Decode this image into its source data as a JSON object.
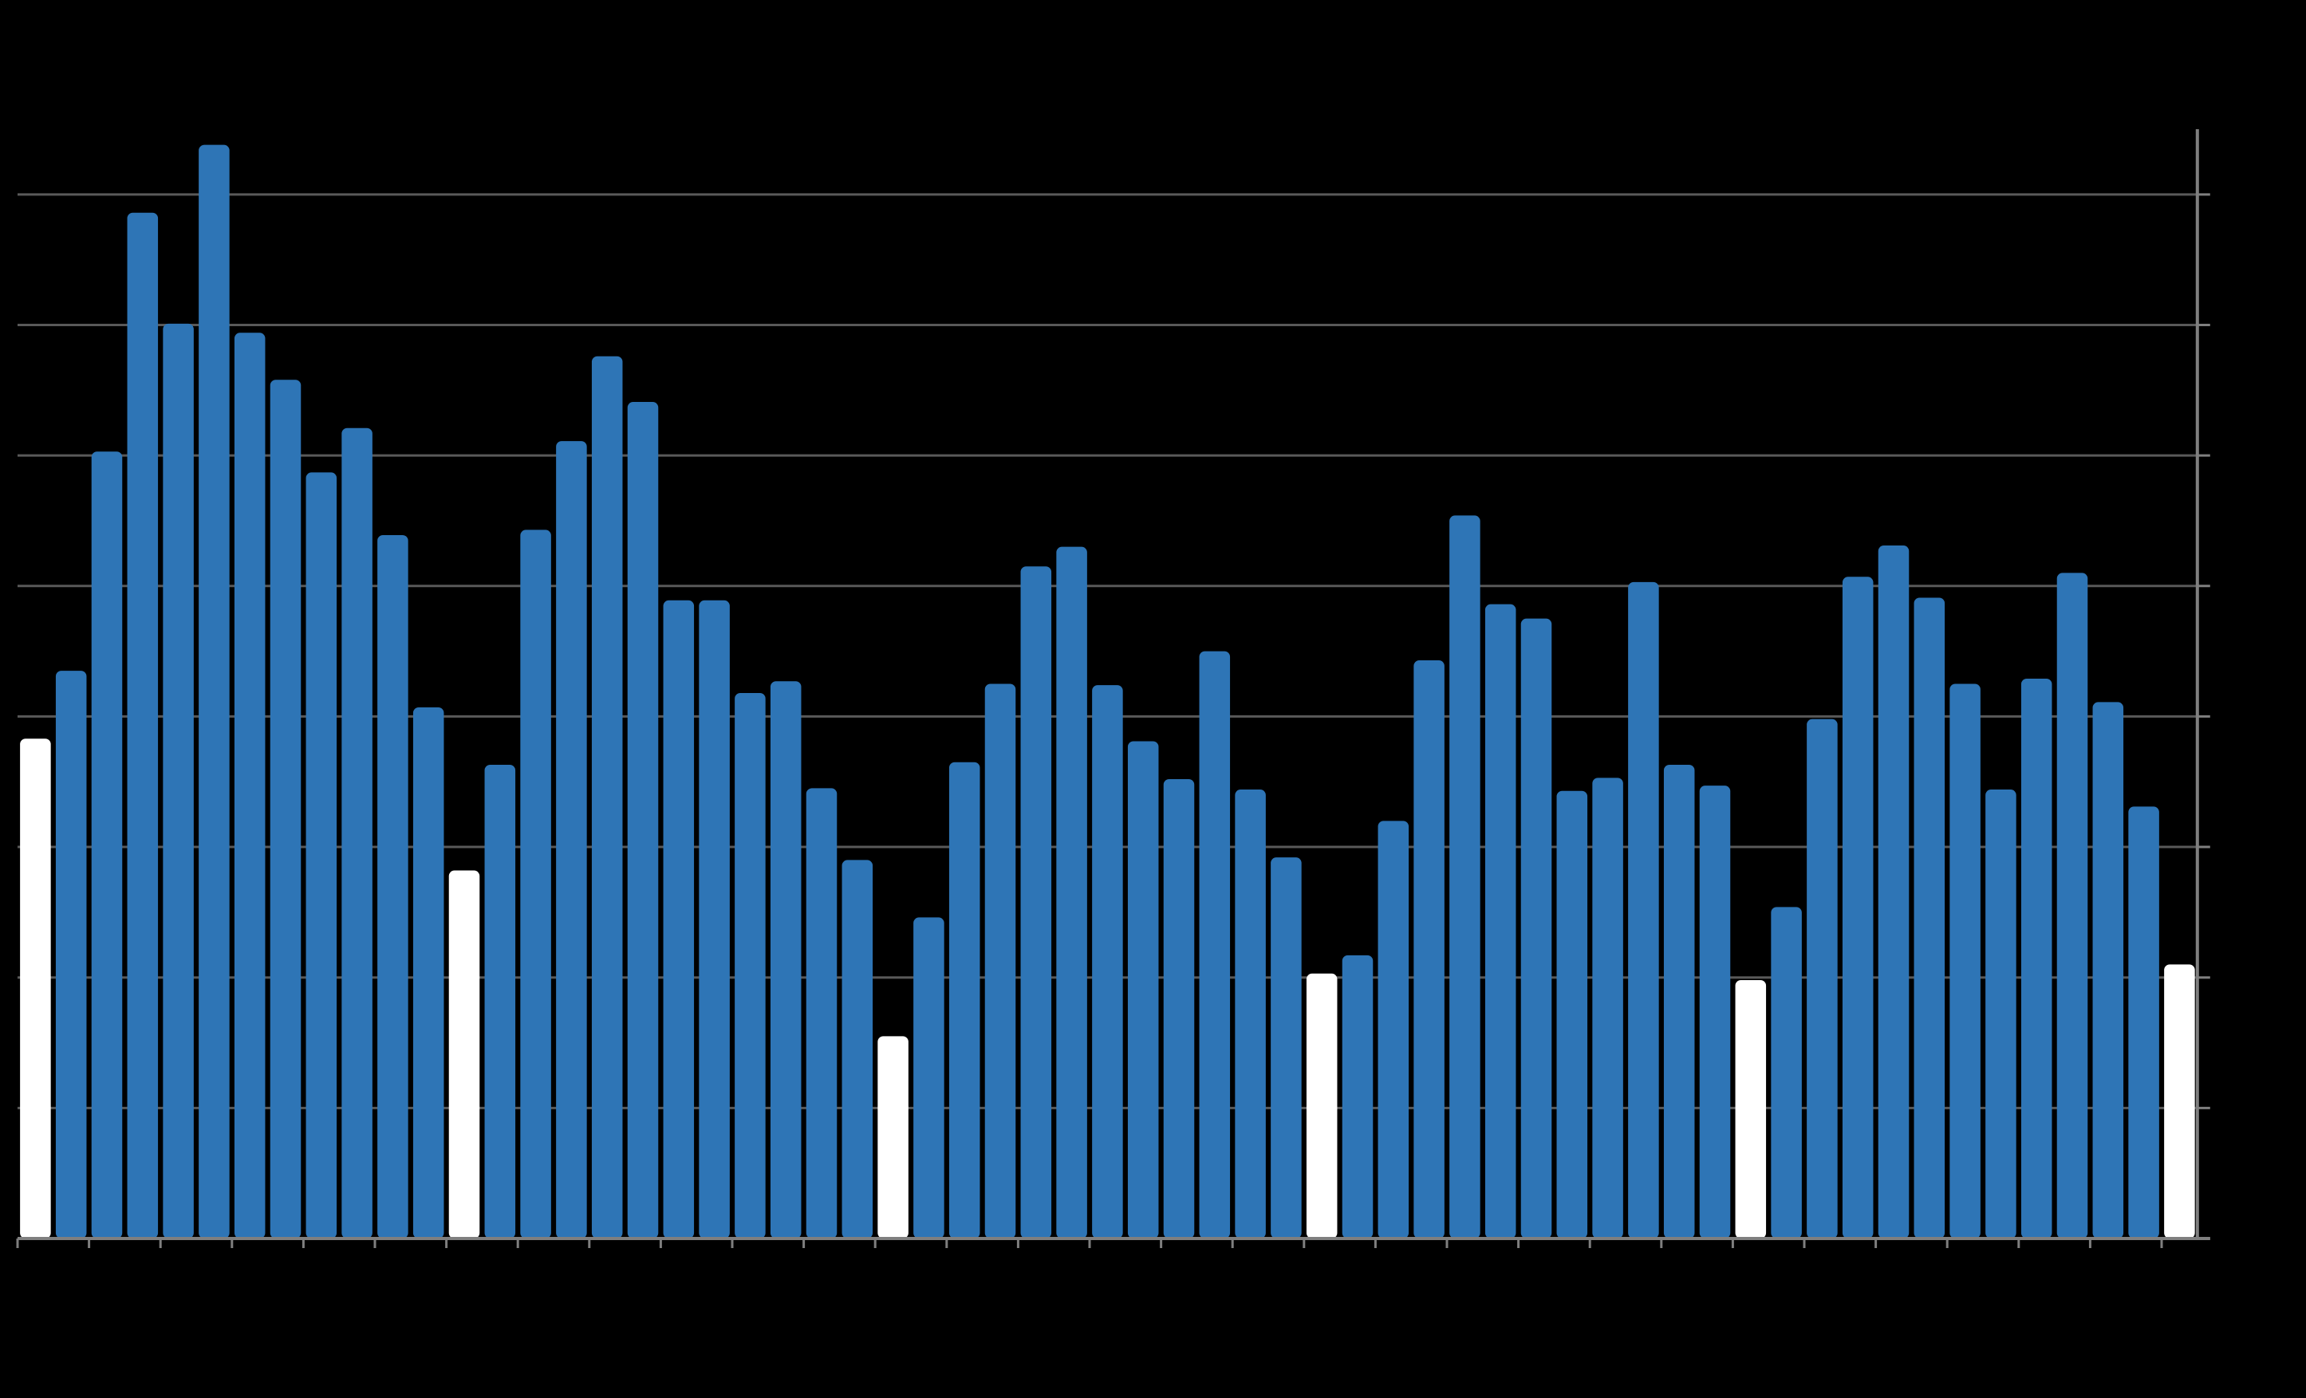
{
  "chart_data": {
    "type": "bar",
    "values": [
      3.83,
      4.35,
      6.03,
      7.86,
      7.01,
      8.38,
      6.94,
      6.58,
      5.87,
      6.21,
      5.39,
      4.07,
      2.82,
      3.63,
      5.43,
      6.11,
      6.76,
      6.41,
      4.89,
      4.89,
      4.18,
      4.27,
      3.45,
      2.9,
      1.55,
      2.46,
      3.65,
      4.25,
      5.15,
      5.3,
      4.24,
      3.81,
      3.52,
      4.5,
      3.44,
      2.92,
      2.03,
      2.17,
      3.2,
      4.43,
      5.54,
      4.86,
      4.75,
      3.43,
      3.53,
      5.03,
      3.63,
      3.47,
      1.98,
      2.54,
      3.98,
      5.07,
      5.31,
      4.91,
      4.25,
      3.44,
      4.29,
      5.1,
      4.11,
      3.31,
      2.1
    ],
    "colors": [
      "#ffffff",
      "#2e75b6",
      "#2e75b6",
      "#2e75b6",
      "#2e75b6",
      "#2e75b6",
      "#2e75b6",
      "#2e75b6",
      "#2e75b6",
      "#2e75b6",
      "#2e75b6",
      "#2e75b6",
      "#ffffff",
      "#2e75b6",
      "#2e75b6",
      "#2e75b6",
      "#2e75b6",
      "#2e75b6",
      "#2e75b6",
      "#2e75b6",
      "#2e75b6",
      "#2e75b6",
      "#2e75b6",
      "#2e75b6",
      "#ffffff",
      "#2e75b6",
      "#2e75b6",
      "#2e75b6",
      "#2e75b6",
      "#2e75b6",
      "#2e75b6",
      "#2e75b6",
      "#2e75b6",
      "#2e75b6",
      "#2e75b6",
      "#2e75b6",
      "#ffffff",
      "#2e75b6",
      "#2e75b6",
      "#2e75b6",
      "#2e75b6",
      "#2e75b6",
      "#2e75b6",
      "#2e75b6",
      "#2e75b6",
      "#2e75b6",
      "#2e75b6",
      "#2e75b6",
      "#ffffff",
      "#2e75b6",
      "#2e75b6",
      "#2e75b6",
      "#2e75b6",
      "#2e75b6",
      "#2e75b6",
      "#2e75b6",
      "#2e75b6",
      "#2e75b6",
      "#2e75b6",
      "#2e75b6",
      "#ffffff"
    ],
    "ylim": [
      0,
      8.5
    ],
    "yticks": [
      0,
      1,
      2,
      3,
      4,
      5,
      6,
      7,
      8
    ],
    "grid": true
  }
}
